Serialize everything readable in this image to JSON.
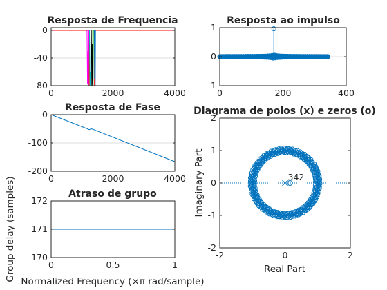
{
  "colors": {
    "series_blue": "#0072bd",
    "series_red": "#ff0000",
    "series_magenta": "#ff00ff",
    "series_cyan": "#00bfbf",
    "series_black": "#000000",
    "series_green": "#00a000",
    "axis": "#262626",
    "grid": "#dedede"
  },
  "chart_data": [
    {
      "type": "line",
      "title": "Resposta de Frequencia",
      "xlim": [
        0,
        4000
      ],
      "ylim": [
        -80,
        10
      ],
      "xticks": [
        0,
        2000,
        4000
      ],
      "yticks": [
        0,
        -40,
        -80
      ],
      "grid": true,
      "series": [
        {
          "color": "#ff0000",
          "x": [
            0,
            1230,
            1230,
            1400,
            1400,
            4000
          ],
          "y": [
            0,
            0,
            -80,
            -80,
            0,
            0
          ]
        },
        {
          "color": "#ff00ff",
          "x": [
            1160,
            1175,
            1190,
            1205,
            1220
          ],
          "y": [
            0,
            -78,
            -30,
            -80,
            0
          ]
        },
        {
          "color": "#00bfbf",
          "x": [
            1240,
            1255,
            1268,
            1282,
            1296
          ],
          "y": [
            0,
            -80,
            -60,
            -80,
            0
          ]
        },
        {
          "color": "#000000",
          "x": [
            1300,
            1313,
            1327,
            1340,
            1352
          ],
          "y": [
            0,
            -80,
            -20,
            -80,
            0
          ]
        },
        {
          "color": "#00a000",
          "x": [
            1345,
            1356,
            1366
          ],
          "y": [
            0,
            -80,
            0
          ]
        },
        {
          "color": "#0072bd",
          "x": [
            1395,
            1405,
            1415,
            1425,
            1435
          ],
          "y": [
            0,
            -70,
            -8,
            -80,
            0
          ]
        }
      ]
    },
    {
      "type": "stem",
      "title": "Resposta ao impulso",
      "xlim": [
        0,
        400
      ],
      "ylim": [
        -1,
        1
      ],
      "xticks": [
        0,
        200,
        400
      ],
      "yticks": [
        1,
        0,
        -1
      ],
      "grid": true,
      "n": 343,
      "peak_index": 171,
      "peak_value": 0.96,
      "color": "#0072bd"
    },
    {
      "type": "line",
      "title": "Resposta de Fase",
      "xlim": [
        0,
        4000
      ],
      "ylim": [
        -200,
        0
      ],
      "xticks": [
        0,
        2000,
        4000
      ],
      "yticks": [
        0,
        -100,
        -200
      ],
      "grid": true,
      "series": [
        {
          "color": "#0072bd",
          "x": [
            0,
            1150,
            1230,
            1300,
            1380,
            4000
          ],
          "y": [
            0,
            -49,
            -53,
            -50,
            -53,
            -166
          ]
        }
      ]
    },
    {
      "type": "line",
      "title": "Atraso de grupo",
      "xlabel": "Normalized Frequency (×π rad/sample)",
      "ylabel": "Group delay (samples)",
      "xlim": [
        0,
        1
      ],
      "ylim": [
        170,
        172
      ],
      "xticks": [
        "0",
        "0.5",
        "1"
      ],
      "yticks": [
        "172",
        "171",
        "170"
      ],
      "xtick_values": [
        0,
        0.5,
        1
      ],
      "ytick_values": [
        172,
        171,
        170
      ],
      "grid": false,
      "series": [
        {
          "color": "#0072bd",
          "x": [
            0,
            1
          ],
          "y": [
            171,
            171
          ]
        }
      ]
    },
    {
      "type": "scatter",
      "title": "Diagrama de polos (x) e zeros (o)",
      "xlabel": "Real Part",
      "ylabel": "Imaginary Part",
      "xlim": [
        -2,
        2
      ],
      "ylim": [
        -2,
        2
      ],
      "xticks": [
        -2,
        0,
        2
      ],
      "yticks": [
        2,
        1,
        0,
        -1,
        -2
      ],
      "grid": false,
      "zero_count": 342,
      "zero_count_label": "342",
      "pole_marker": {
        "x": 0,
        "y": 0
      },
      "zero_marker_extra": {
        "x": 0.15,
        "y": 0
      },
      "zeros_radius_range": [
        0.93,
        1.07
      ],
      "color": "#0072bd"
    }
  ]
}
